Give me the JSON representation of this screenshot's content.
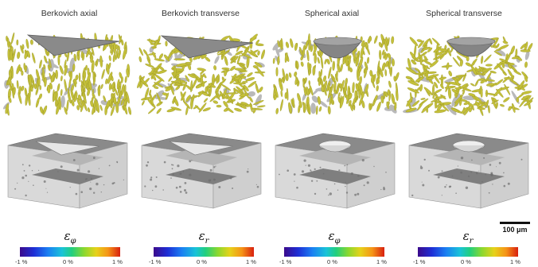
{
  "panels": [
    {
      "title": "Berkovich axial",
      "symbol": "ε",
      "subscript": "φ"
    },
    {
      "title": "Berkovich transverse",
      "symbol": "ε",
      "subscript": "r"
    },
    {
      "title": "Spherical axial",
      "symbol": "ε",
      "subscript": "φ"
    },
    {
      "title": "Spherical transverse",
      "symbol": "ε",
      "subscript": "r"
    }
  ],
  "colorbar": {
    "min_label": "-1 %",
    "mid_label": "0 %",
    "max_label": "1 %"
  },
  "scale_bar": {
    "label": "100 μm"
  },
  "colors": {
    "fiber": "#c4c03a",
    "indenter": "#7d7d7d",
    "ct_block": "#d9d9d9"
  }
}
